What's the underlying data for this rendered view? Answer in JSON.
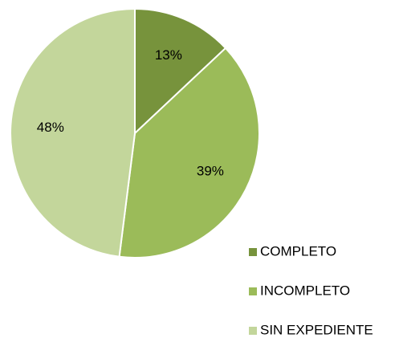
{
  "chart_data": {
    "type": "pie",
    "categories": [
      "COMPLETO",
      "INCOMPLETO",
      "SIN EXPEDIENTE"
    ],
    "values": [
      13,
      39,
      48
    ],
    "value_labels": [
      "13%",
      "39%",
      "48%"
    ],
    "colors": [
      "#77933c",
      "#9bbb59",
      "#c3d69b"
    ],
    "legend": "bottom-right"
  }
}
